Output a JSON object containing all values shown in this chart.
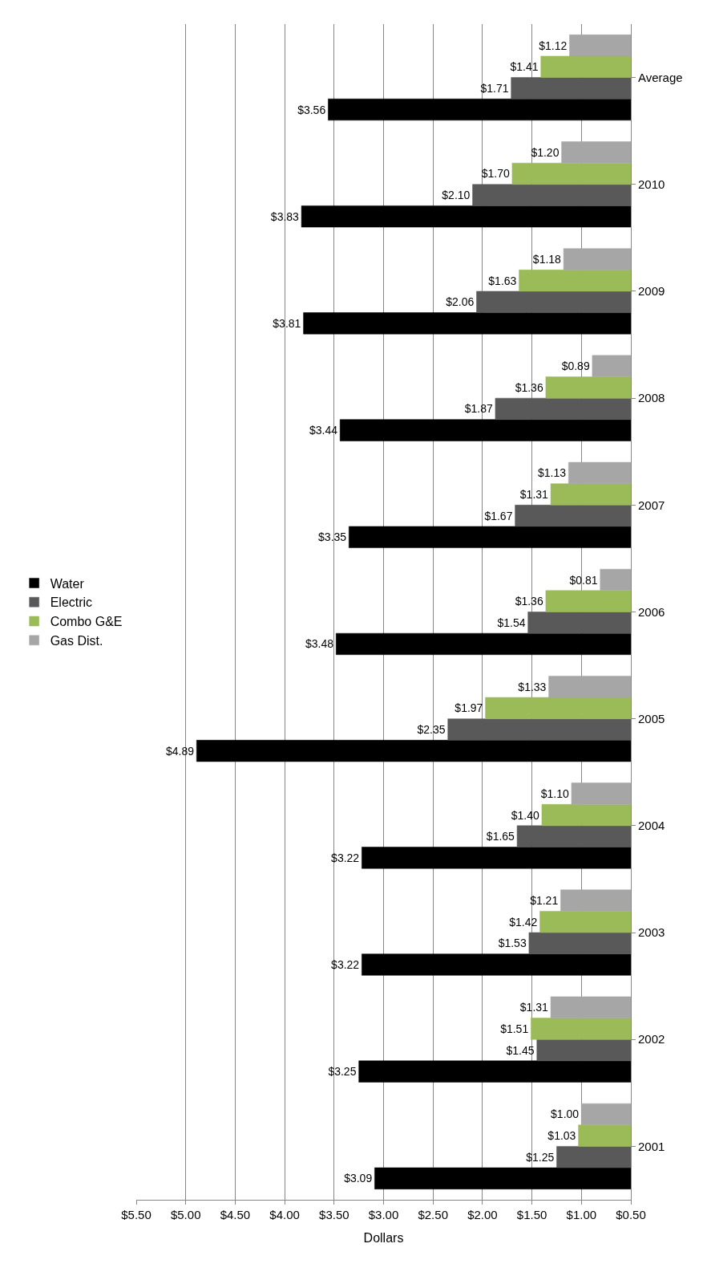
{
  "chart_data": {
    "type": "bar",
    "orientation": "horizontal",
    "xlabel": "Dollars",
    "categories": [
      "Average",
      "2010",
      "2009",
      "2008",
      "2007",
      "2006",
      "2005",
      "2004",
      "2003",
      "2002",
      "2001"
    ],
    "series": [
      {
        "name": "Water",
        "color": "#000000",
        "values": [
          3.56,
          3.83,
          3.81,
          3.44,
          3.35,
          3.48,
          4.89,
          3.22,
          3.22,
          3.25,
          3.09
        ],
        "value_labels": [
          "$3.56",
          "$3.83",
          "$3.81",
          "$3.44",
          "$3.35",
          "$3.48",
          "$4.89",
          "$3.22",
          "$3.22",
          "$3.25",
          "$3.09"
        ]
      },
      {
        "name": "Electric",
        "color": "#595959",
        "values": [
          1.71,
          2.1,
          2.06,
          1.87,
          1.67,
          1.54,
          2.35,
          1.65,
          1.53,
          1.45,
          1.25
        ],
        "value_labels": [
          "$1.71",
          "$2.10",
          "$2.06",
          "$1.87",
          "$1.67",
          "$1.54",
          "$2.35",
          "$1.65",
          "$1.53",
          "$1.45",
          "$1.25"
        ]
      },
      {
        "name": "Combo G&E",
        "color": "#9bbb59",
        "values": [
          1.41,
          1.7,
          1.63,
          1.36,
          1.31,
          1.36,
          1.97,
          1.4,
          1.42,
          1.51,
          1.03
        ],
        "value_labels": [
          "$1.41",
          "$1.70",
          "$1.63",
          "$1.36",
          "$1.31",
          "$1.36",
          "$1.97",
          "$1.40",
          "$1.42",
          "$1.51",
          "$1.03"
        ]
      },
      {
        "name": "Gas Dist.",
        "color": "#a6a6a6",
        "values": [
          1.12,
          1.2,
          1.18,
          0.89,
          1.13,
          0.81,
          1.33,
          1.1,
          1.21,
          1.31,
          1.0
        ],
        "value_labels": [
          "$1.12",
          "$1.20",
          "$1.18",
          "$0.89",
          "$1.13",
          "$0.81",
          "$1.33",
          "$1.10",
          "$1.21",
          "$1.31",
          "$1.00"
        ]
      }
    ],
    "xlim": [
      5.5,
      0.5
    ],
    "xticks": [
      {
        "value": 5.5,
        "label": "$5.50"
      },
      {
        "value": 5.0,
        "label": "$5.00"
      },
      {
        "value": 4.5,
        "label": "$4.50"
      },
      {
        "value": 4.0,
        "label": "$4.00"
      },
      {
        "value": 3.5,
        "label": "$3.50"
      },
      {
        "value": 3.0,
        "label": "$3.00"
      },
      {
        "value": 2.5,
        "label": "$2.50"
      },
      {
        "value": 2.0,
        "label": "$2.00"
      },
      {
        "value": 1.5,
        "label": "$1.50"
      },
      {
        "value": 1.0,
        "label": "$1.00"
      },
      {
        "value": 0.5,
        "label": "$0.50"
      }
    ],
    "grid": "x",
    "legend": "left"
  }
}
